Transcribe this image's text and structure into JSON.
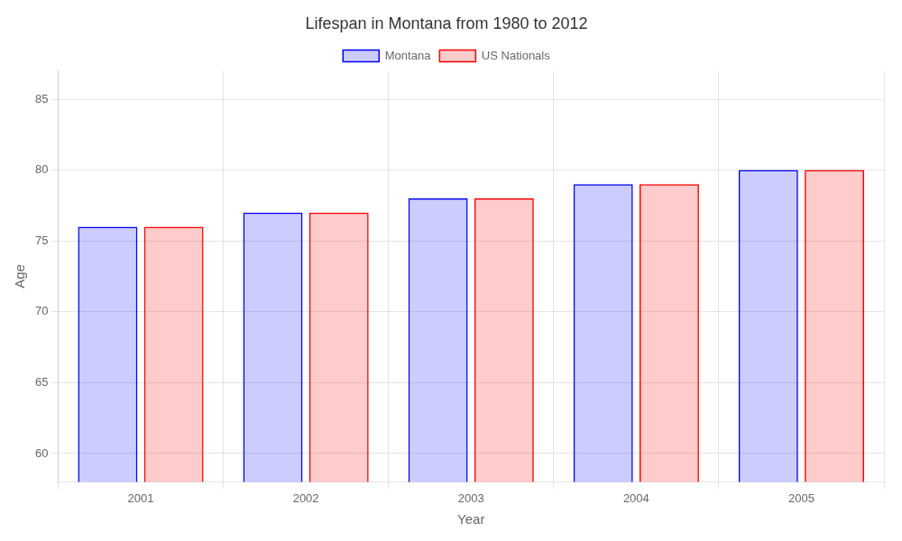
{
  "chart_data": {
    "type": "bar",
    "title": "Lifespan in Montana from 1980 to 2012",
    "x_label": "Year",
    "y_label": "Age",
    "categories": [
      "2001",
      "2002",
      "2003",
      "2004",
      "2005"
    ],
    "series": [
      {
        "name": "Montana",
        "color": "#0000ff",
        "values": [
          76,
          77,
          78,
          79,
          80
        ]
      },
      {
        "name": "US Nationals",
        "color": "#ff0000",
        "values": [
          76,
          77,
          78,
          79,
          80
        ]
      }
    ],
    "ylim": [
      58,
      87
    ],
    "yticks": [
      60,
      65,
      70,
      75,
      80,
      85
    ],
    "grid": true,
    "legend": "top"
  }
}
